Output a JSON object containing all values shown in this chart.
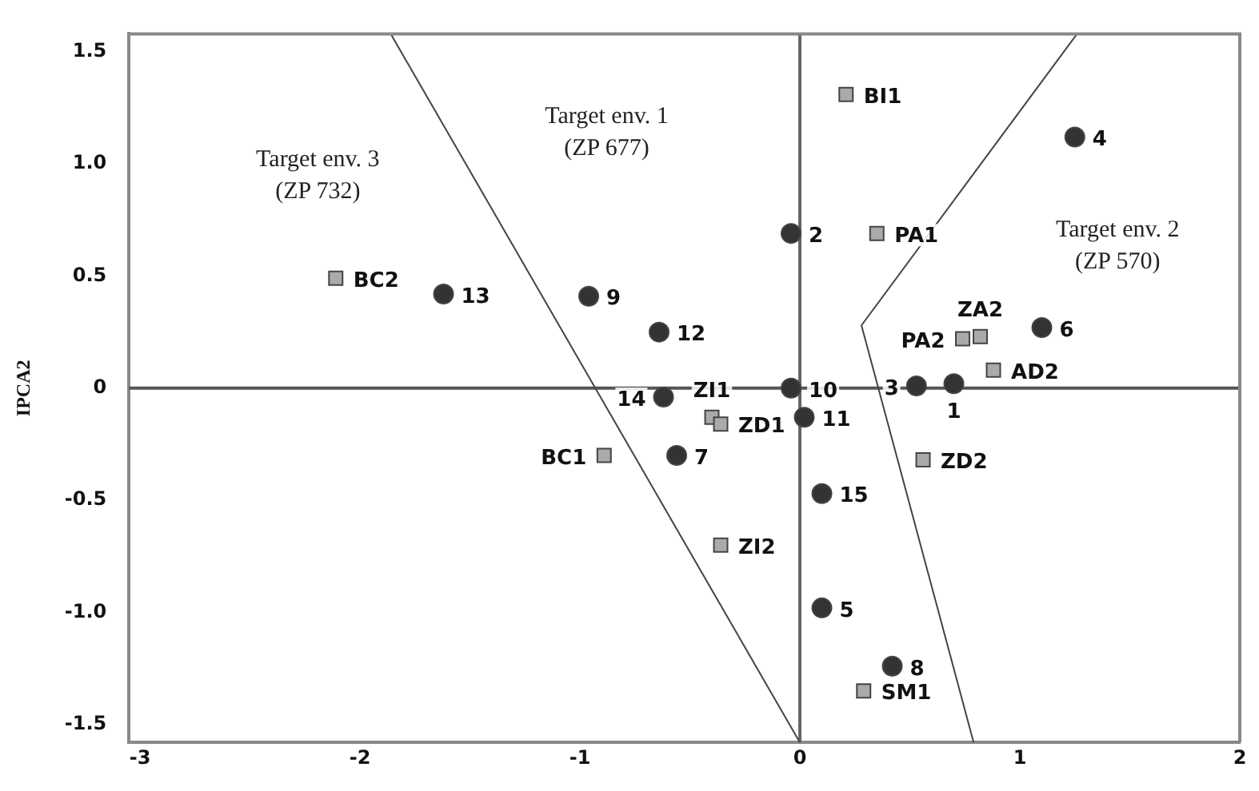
{
  "chart_data": {
    "type": "scatter",
    "ylabel": "IPCA2",
    "xlim": [
      -3.05,
      2
    ],
    "xticks": [
      -3,
      -2,
      -1,
      0,
      1,
      2
    ],
    "ylim": [
      -1.58,
      1.58
    ],
    "yticks": [
      {
        "value": -1.5,
        "label": "-1.5"
      },
      {
        "value": -1,
        "label": "-1.0"
      },
      {
        "value": -0.5,
        "label": "-0.5"
      },
      0,
      {
        "value": 0.5,
        "label": "0.5"
      },
      {
        "value": 1,
        "label": "1.0"
      },
      {
        "value": 1.5,
        "label": "1.5"
      }
    ],
    "grid": false,
    "series": [
      {
        "marker": "circle",
        "color": "#333333",
        "x": [
          0.7,
          -0.04,
          0.53,
          1.25,
          0.1,
          1.1,
          -0.56,
          0.42,
          -0.96,
          -0.04,
          0.02,
          -0.64,
          -1.62,
          -0.62,
          0.1
        ],
        "values": [
          0.02,
          0.69,
          0.01,
          1.12,
          -0.98,
          0.27,
          -0.3,
          -1.24,
          0.41,
          0,
          -0.13,
          0.25,
          0.42,
          -0.04,
          -0.47
        ]
      },
      {
        "marker": "square",
        "color": "#aaaaaa",
        "x": [
          0.21,
          0.35,
          -2.11,
          0.74,
          0.82,
          0.88,
          -0.4,
          -0.36,
          -0.89,
          0.56,
          -0.36,
          0.29
        ],
        "values": [
          1.31,
          0.69,
          0.49,
          0.22,
          0.23,
          0.08,
          -0.13,
          -0.16,
          -0.3,
          -0.32,
          -0.7,
          -1.35
        ]
      },
      {
        "type": "line",
        "marker": "none",
        "color": "#444444",
        "x": [
          -1.86,
          0
        ],
        "values": [
          1.58,
          -1.58
        ]
      },
      {
        "type": "line",
        "marker": "none",
        "color": "#444444",
        "x": [
          1.26,
          0.28,
          0.79
        ],
        "values": [
          1.58,
          0.28,
          -1.58
        ]
      }
    ],
    "ref_lines": [
      {
        "axis": "y",
        "value": 0,
        "color": "#555555"
      },
      {
        "axis": "x",
        "value": 0,
        "color": "#666666"
      }
    ],
    "annotations": [
      "Target env. 3\n(ZP 732)",
      "Target env. 1\n(ZP 677)",
      "Target env. 2\n(ZP 570)",
      {
        "text": "1",
        "x": 0.7,
        "y": 0.02
      },
      {
        "text": "2",
        "x": -0.04,
        "y": 0.69
      },
      {
        "text": "3",
        "x": 0.53,
        "y": 0.01
      },
      {
        "text": "4",
        "x": 1.25,
        "y": 1.12
      },
      {
        "text": "5",
        "x": 0.1,
        "y": -0.98
      },
      {
        "text": "6",
        "x": 1.1,
        "y": 0.27
      },
      {
        "text": "7",
        "x": -0.56,
        "y": -0.3
      },
      {
        "text": "8",
        "x": 0.42,
        "y": -1.24
      },
      {
        "text": "9",
        "x": -0.96,
        "y": 0.41
      },
      {
        "text": "10",
        "x": -0.04,
        "y": 0
      },
      {
        "text": "11",
        "x": 0.02,
        "y": -0.13
      },
      {
        "text": "12",
        "x": -0.64,
        "y": 0.25
      },
      {
        "text": "13",
        "x": -1.62,
        "y": 0.42
      },
      {
        "text": "14",
        "x": -0.62,
        "y": -0.04
      },
      {
        "text": "15",
        "x": 0.1,
        "y": -0.47
      },
      {
        "text": "BI1",
        "x": 0.21,
        "y": 1.31
      },
      {
        "text": "PA1",
        "x": 0.35,
        "y": 0.69
      },
      {
        "text": "BC2",
        "x": -2.11,
        "y": 0.49
      },
      {
        "text": "PA2",
        "x": 0.74,
        "y": 0.22
      },
      {
        "text": "ZA2",
        "x": 0.82,
        "y": 0.23
      },
      {
        "text": "AD2",
        "x": 0.88,
        "y": 0.08
      },
      {
        "text": "ZI1",
        "x": -0.4,
        "y": -0.13
      },
      {
        "text": "ZD1",
        "x": -0.36,
        "y": -0.16
      },
      {
        "text": "BC1",
        "x": -0.89,
        "y": -0.3
      },
      {
        "text": "ZD2",
        "x": 0.56,
        "y": -0.32
      },
      {
        "text": "ZI2",
        "x": -0.36,
        "y": -0.7
      },
      {
        "text": "SM1",
        "x": 0.29,
        "y": -1.35
      }
    ]
  }
}
